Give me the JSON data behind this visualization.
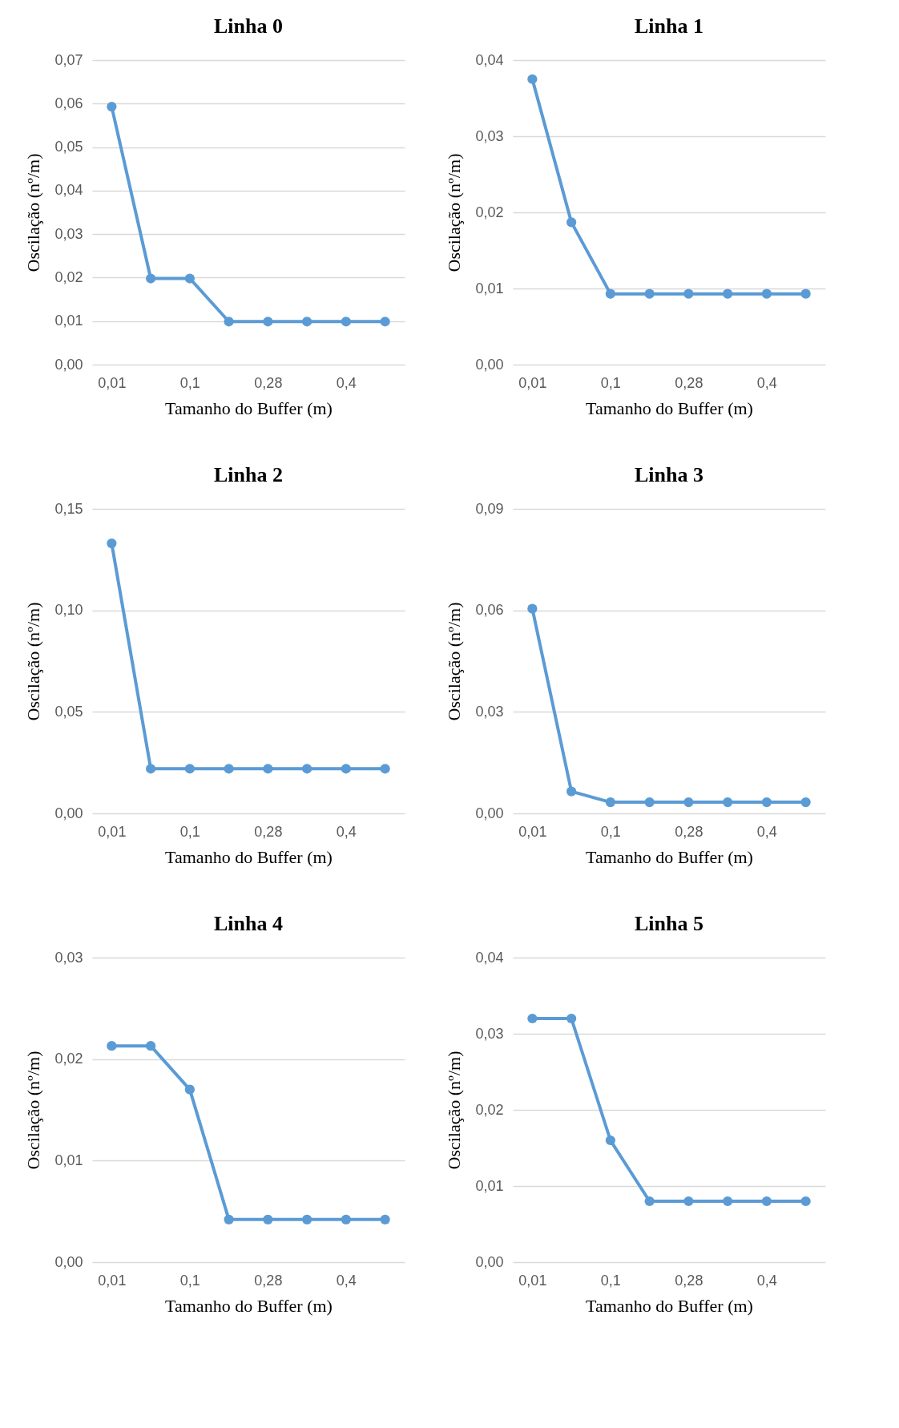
{
  "chart_data": [
    {
      "type": "line",
      "title": "Linha 0",
      "xlabel": "Tamanho do Buffer (m)",
      "ylabel": "Oscilação (nº/m)",
      "categories": [
        "0,01",
        null,
        "0,1",
        null,
        "0,28",
        null,
        "0,4",
        null
      ],
      "grid": "y",
      "marker": "circle",
      "series": [
        {
          "color": "#5b9bd5",
          "values": [
            0.0593,
            0.0198,
            0.0198,
            0.0099,
            0.0099,
            0.0099,
            0.0099,
            0.0099
          ]
        }
      ],
      "ylim": [
        0,
        0.07
      ],
      "yticks": [
        {
          "value": 0,
          "label": "0,00"
        },
        {
          "value": 0.01,
          "label": "0,01"
        },
        {
          "value": 0.02,
          "label": "0,02"
        },
        {
          "value": 0.03,
          "label": "0,03"
        },
        {
          "value": 0.04,
          "label": "0,04"
        },
        {
          "value": 0.05,
          "label": "0,05"
        },
        {
          "value": 0.06,
          "label": "0,06"
        },
        {
          "value": 0.07,
          "label": "0,07"
        }
      ]
    },
    {
      "type": "line",
      "title": "Linha 1",
      "xlabel": "Tamanho do Buffer (m)",
      "ylabel": "Oscilação (nº/m)",
      "categories": [
        "0,01",
        null,
        "0,1",
        null,
        "0,28",
        null,
        "0,4",
        null
      ],
      "grid": "y",
      "marker": "circle",
      "series": [
        {
          "color": "#5b9bd5",
          "values": [
            0.0375,
            0.0187,
            0.0093,
            0.0093,
            0.0093,
            0.0093,
            0.0093,
            0.0093
          ]
        }
      ],
      "ylim": [
        0,
        0.04
      ],
      "yticks": [
        {
          "value": 0,
          "label": "0,00"
        },
        {
          "value": 0.01,
          "label": "0,01"
        },
        {
          "value": 0.02,
          "label": "0,02"
        },
        {
          "value": 0.03,
          "label": "0,03"
        },
        {
          "value": 0.04,
          "label": "0,04"
        }
      ]
    },
    {
      "type": "line",
      "title": "Linha 2",
      "xlabel": "Tamanho do Buffer (m)",
      "ylabel": "Oscilação (nº/m)",
      "categories": [
        "0,01",
        null,
        "0,1",
        null,
        "0,28",
        null,
        "0,4",
        null
      ],
      "grid": "y",
      "marker": "circle",
      "series": [
        {
          "color": "#5b9bd5",
          "values": [
            0.133,
            0.022,
            0.022,
            0.022,
            0.022,
            0.022,
            0.022,
            0.022
          ]
        }
      ],
      "ylim": [
        0,
        0.15
      ],
      "yticks": [
        {
          "value": 0,
          "label": "0,00"
        },
        {
          "value": 0.05,
          "label": "0,05"
        },
        {
          "value": 0.1,
          "label": "0,10"
        },
        {
          "value": 0.15,
          "label": "0,15"
        }
      ]
    },
    {
      "type": "line",
      "title": "Linha 3",
      "xlabel": "Tamanho do Buffer (m)",
      "ylabel": "Oscilação (nº/m)",
      "categories": [
        "0,01",
        null,
        "0,1",
        null,
        "0,28",
        null,
        "0,4",
        null
      ],
      "grid": "y",
      "marker": "circle",
      "series": [
        {
          "color": "#5b9bd5",
          "values": [
            0.0605,
            0.0065,
            0.0033,
            0.0033,
            0.0033,
            0.0033,
            0.0033,
            0.0033
          ]
        }
      ],
      "ylim": [
        0,
        0.09
      ],
      "yticks": [
        {
          "value": 0,
          "label": "0,00"
        },
        {
          "value": 0.03,
          "label": "0,03"
        },
        {
          "value": 0.06,
          "label": "0,06"
        },
        {
          "value": 0.09,
          "label": "0,09"
        }
      ]
    },
    {
      "type": "line",
      "title": "Linha 4",
      "xlabel": "Tamanho do Buffer (m)",
      "ylabel": "Oscilação (nº/m)",
      "categories": [
        "0,01",
        null,
        "0,1",
        null,
        "0,28",
        null,
        "0,4",
        null
      ],
      "grid": "y",
      "marker": "circle",
      "series": [
        {
          "color": "#5b9bd5",
          "values": [
            0.0213,
            0.0213,
            0.017,
            0.0042,
            0.0042,
            0.0042,
            0.0042,
            0.0042
          ]
        }
      ],
      "ylim": [
        0,
        0.03
      ],
      "yticks": [
        {
          "value": 0,
          "label": "0,00"
        },
        {
          "value": 0.01,
          "label": "0,01"
        },
        {
          "value": 0.02,
          "label": "0,02"
        },
        {
          "value": 0.03,
          "label": "0,03"
        }
      ]
    },
    {
      "type": "line",
      "title": "Linha 5",
      "xlabel": "Tamanho do Buffer (m)",
      "ylabel": "Oscilação (nº/m)",
      "categories": [
        "0,01",
        null,
        "0,1",
        null,
        "0,28",
        null,
        "0,4",
        null
      ],
      "grid": "y",
      "marker": "circle",
      "series": [
        {
          "color": "#5b9bd5",
          "values": [
            0.032,
            0.032,
            0.016,
            0.008,
            0.008,
            0.008,
            0.008,
            0.008
          ]
        }
      ],
      "ylim": [
        0,
        0.04
      ],
      "yticks": [
        {
          "value": 0,
          "label": "0,00"
        },
        {
          "value": 0.01,
          "label": "0,01"
        },
        {
          "value": 0.02,
          "label": "0,02"
        },
        {
          "value": 0.03,
          "label": "0,03"
        },
        {
          "value": 0.04,
          "label": "0,04"
        }
      ]
    }
  ]
}
